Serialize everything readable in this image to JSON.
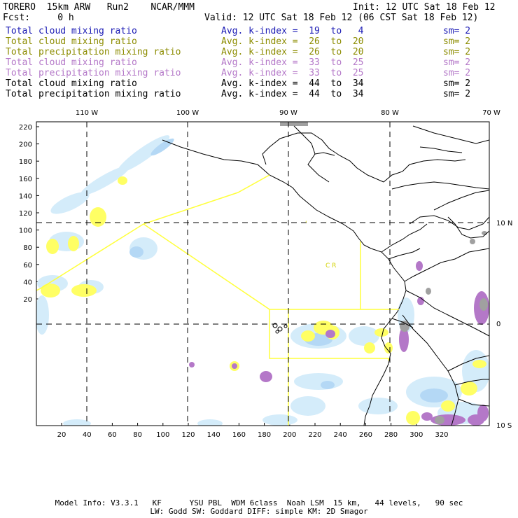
{
  "header": {
    "model": "TORERO  15km ARW   Run2    NCAR/MMM",
    "init": "Init: 12 UTC Sat 18 Feb 12",
    "fcst": "Fcst:     0 h",
    "valid": "Valid: 12 UTC Sat 18 Feb 12 (06 CST Sat 18 Feb 12)"
  },
  "legend": [
    {
      "name": "Total cloud mixing ratio",
      "index": "Avg. k-index =  19  to   4",
      "sm": "sm= 2",
      "color": "#1a1ab4"
    },
    {
      "name": "Total cloud mixing ratio",
      "index": "Avg. k-index =  26  to  20",
      "sm": "sm= 2",
      "color": "#8c8c00"
    },
    {
      "name": "Total precipitation mixing ratio",
      "index": "Avg. k-index =  26  to  20",
      "sm": "sm= 2",
      "color": "#8c8c00"
    },
    {
      "name": "Total cloud mixing ratio",
      "index": "Avg. k-index =  33  to  25",
      "sm": "sm= 2",
      "color": "#b478c8"
    },
    {
      "name": "Total precipitation mixing ratio",
      "index": "Avg. k-index =  33  to  25",
      "sm": "sm= 2",
      "color": "#b478c8"
    },
    {
      "name": "Total cloud mixing ratio",
      "index": "Avg. k-index =  44  to  34",
      "sm": "sm= 2",
      "color": "#000000"
    },
    {
      "name": "Total precipitation mixing ratio",
      "index": "Avg. k-index =  44  to  34",
      "sm": "sm= 2",
      "color": "#000000"
    }
  ],
  "map": {
    "lon_labels": [
      "110 W",
      "100 W",
      "90 W",
      "80 W",
      "70 W"
    ],
    "lat_labels": [
      "10 N",
      "0",
      "10 S"
    ],
    "y_ticks": [
      "220",
      "200",
      "180",
      "160",
      "140",
      "120",
      "100",
      "80",
      "60",
      "40",
      "20"
    ],
    "x_ticks": [
      "20",
      "40",
      "60",
      "80",
      "100",
      "120",
      "140",
      "160",
      "180",
      "200",
      "220",
      "240",
      "260",
      "280",
      "300",
      "320"
    ],
    "region_text": "C   R",
    "colors": {
      "cloud_light": "#d4ecfa",
      "cloud_mid": "#b4d8f5",
      "yellow": "#ffff64",
      "purple": "#b478c8",
      "gray": "#a0a0a0",
      "outline": "#ffff3c"
    }
  },
  "footer": {
    "line1": "Model Info: V3.3.1   KF      YSU PBL  WDM 6class  Noah LSM  15 km,   44 levels,   90 sec",
    "line2": "LW: Godd SW: Goddard DIFF: simple KM: 2D Smagor"
  }
}
